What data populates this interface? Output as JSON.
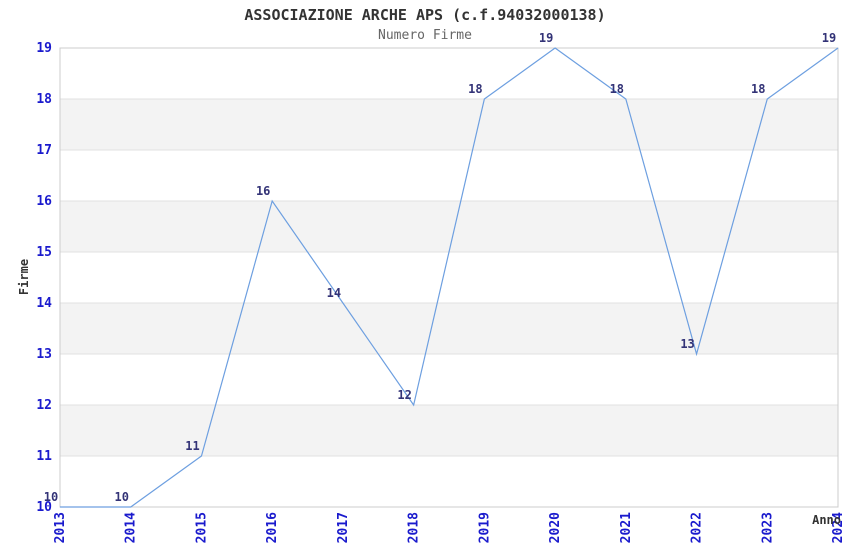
{
  "chart_data": {
    "type": "line",
    "title": "ASSOCIAZIONE ARCHE APS (c.f.94032000138)",
    "subtitle": "Numero Firme",
    "xlabel": "Anno",
    "ylabel": "Firme",
    "categories": [
      "2013",
      "2014",
      "2015",
      "2016",
      "2017",
      "2018",
      "2019",
      "2020",
      "2021",
      "2022",
      "2023",
      "2024"
    ],
    "series": [
      {
        "name": "Numero Firme",
        "values": [
          10,
          10,
          11,
          16,
          14,
          12,
          18,
          19,
          18,
          13,
          18,
          19
        ]
      }
    ],
    "ylim": [
      10,
      19
    ],
    "ytick_step": 1,
    "grid": "horizontal-every-integer",
    "bands": "alternating-horizontal",
    "legend": "none",
    "point_labels_visible": true,
    "colors": {
      "line": "#6d9fe0",
      "tick_text": "#1a1acd",
      "point_label_text": "#333377",
      "title_text": "#333333",
      "subtitle_text": "#666666",
      "axis_label_text": "#333333",
      "gridline": "#e0e0e0",
      "band_fill": "#f3f3f3",
      "plot_border": "#cccccc",
      "background": "#ffffff"
    }
  }
}
